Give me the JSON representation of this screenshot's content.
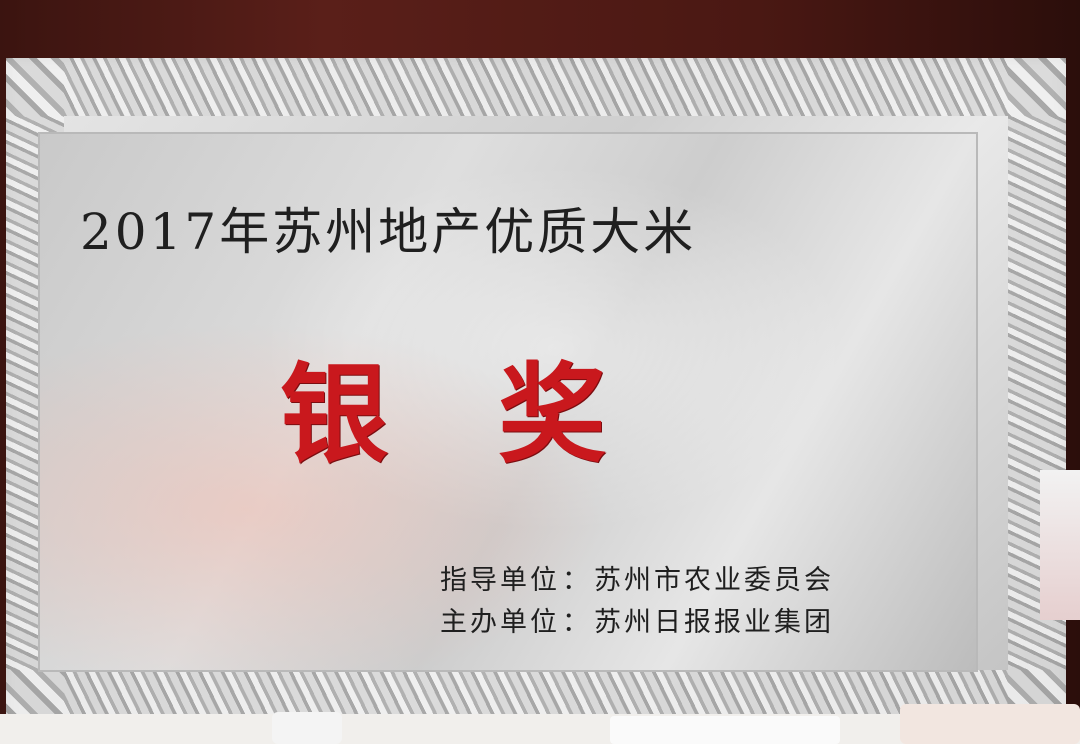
{
  "plaque": {
    "title": "2017年苏州地产优质大米",
    "award": "银奖",
    "organizers": [
      {
        "role": "指导单位",
        "name": "苏州市农业委员会"
      },
      {
        "role": "主办单位",
        "name": "苏州日报报业集团"
      }
    ]
  },
  "colors": {
    "award_red": "#c9181d",
    "frame_wood": "#4a1813",
    "plate_silver": "#d4d4d4"
  }
}
